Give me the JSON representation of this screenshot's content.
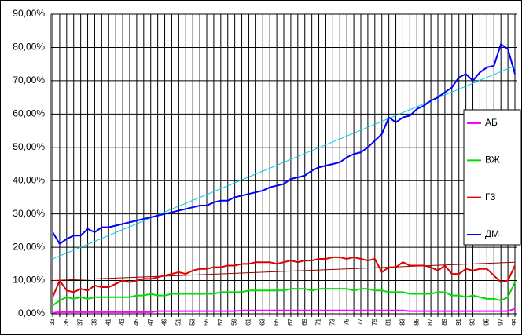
{
  "chart_data": {
    "type": "line",
    "categories": [
      "33",
      null,
      "35",
      null,
      "37",
      null,
      "39",
      null,
      "41",
      null,
      "43",
      null,
      "45",
      null,
      "47",
      null,
      "49",
      null,
      "51",
      null,
      "53",
      null,
      "55",
      null,
      "57",
      null,
      "59",
      null,
      "61",
      null,
      "63",
      null,
      "65",
      null,
      "67",
      null,
      "69",
      null,
      "71",
      null,
      "73",
      null,
      "75",
      null,
      "77",
      null,
      "79",
      null,
      "81",
      null,
      "83",
      null,
      "85",
      null,
      "87",
      null,
      "89",
      null,
      "91",
      null,
      "93",
      null,
      "95",
      null,
      "97",
      null,
      "99"
    ],
    "series": [
      {
        "name": "АБ",
        "color": "#ff00ff",
        "values": [
          0.3,
          0.5,
          0.5,
          0.5,
          0.5,
          0.5,
          0.5,
          0.5,
          0.5,
          0.5,
          0.5,
          0.5,
          0.5,
          0.5,
          0.5,
          0.8,
          0.8,
          0.8,
          0.8,
          0.8,
          0.8,
          0.8,
          0.8,
          0.8,
          0.8,
          0.8,
          0.8,
          1,
          1,
          1,
          1,
          1,
          1,
          1,
          1,
          1,
          1,
          1,
          1,
          1,
          1,
          1,
          1,
          1,
          1,
          1,
          1,
          1,
          1,
          1,
          1,
          0.8,
          0.8,
          0.8,
          0.8,
          0.8,
          0.8,
          0.8,
          0.8,
          0.8,
          0.8,
          0.8,
          0.8,
          0.8,
          0.8,
          0.8,
          1.5
        ]
      },
      {
        "name": "ВЖ",
        "color": "#00e000",
        "values": [
          2.5,
          4,
          5,
          4.5,
          5,
          4.5,
          5,
          5,
          5,
          5,
          5,
          5,
          5.5,
          5.5,
          6,
          5.5,
          5.5,
          6,
          6,
          6,
          6,
          6,
          6,
          6,
          6.5,
          6.5,
          6.5,
          6.5,
          7,
          7,
          7,
          7,
          7,
          7,
          7.5,
          7.5,
          7.5,
          7,
          7.5,
          7.5,
          7.5,
          7.5,
          7.5,
          7,
          7.5,
          7.5,
          7,
          7,
          6.5,
          6.5,
          6.5,
          6,
          6,
          6,
          6,
          6.5,
          6.5,
          5.5,
          5.5,
          5,
          5.5,
          5,
          4.5,
          4.5,
          4,
          5,
          9.5
        ]
      },
      {
        "name": "ГЗ",
        "color": "#e00000",
        "values": [
          5,
          10,
          7,
          6.5,
          7.5,
          7,
          8.5,
          8,
          8,
          9,
          10,
          9.5,
          10,
          10.5,
          10.5,
          11,
          11.5,
          12,
          12.5,
          12,
          13,
          13.5,
          13.5,
          14,
          14,
          14.5,
          14.5,
          15,
          15,
          15.5,
          15.5,
          15.5,
          15,
          15.5,
          16,
          15.5,
          16,
          16,
          16.5,
          16.5,
          17,
          17,
          16.5,
          17,
          16.5,
          16,
          16.5,
          12.5,
          14,
          14,
          15.5,
          14.5,
          14.5,
          14.5,
          14,
          13,
          14.5,
          12,
          12,
          13.5,
          13,
          13.5,
          13.5,
          11.5,
          9.5,
          10,
          14.5
        ]
      },
      {
        "name": "ДМ",
        "color": "#0000ff",
        "values": [
          24.5,
          21,
          22.5,
          23.5,
          23.5,
          25.5,
          24.5,
          26,
          26,
          26.5,
          27,
          27.5,
          28,
          28.5,
          29,
          29.5,
          30,
          30.5,
          31,
          31.5,
          32,
          32.5,
          32.5,
          33.5,
          34,
          34,
          35,
          35.5,
          36,
          36.5,
          37,
          38,
          38.5,
          39,
          40.5,
          41,
          41.5,
          43,
          44,
          44.5,
          45,
          45.5,
          47,
          48,
          48.5,
          50,
          52,
          54,
          59,
          57.5,
          59,
          59.5,
          61.5,
          62.5,
          64,
          65,
          66.5,
          68,
          71,
          72,
          70,
          72.5,
          74,
          74.5,
          81,
          79.5,
          72
        ]
      }
    ],
    "trend_lines": [
      {
        "color": "#00c8e8",
        "values": [
          16.5,
          74.5
        ]
      },
      {
        "color": "#900000",
        "values": [
          10,
          15.5
        ]
      }
    ],
    "ylim": [
      0,
      90
    ],
    "yticks": [
      {
        "value": 0,
        "label": "0,00%"
      },
      {
        "value": 10,
        "label": "10,00%"
      },
      {
        "value": 20,
        "label": "20,00%"
      },
      {
        "value": 30,
        "label": "30,00%"
      },
      {
        "value": 40,
        "label": "40,00%"
      },
      {
        "value": 50,
        "label": "50,00%"
      },
      {
        "value": 60,
        "label": "60,00%"
      },
      {
        "value": 70,
        "label": "70,00%"
      },
      {
        "value": 80,
        "label": "80,00%"
      },
      {
        "value": 90,
        "label": "90,00%"
      }
    ],
    "grid": true,
    "legend": "right"
  }
}
